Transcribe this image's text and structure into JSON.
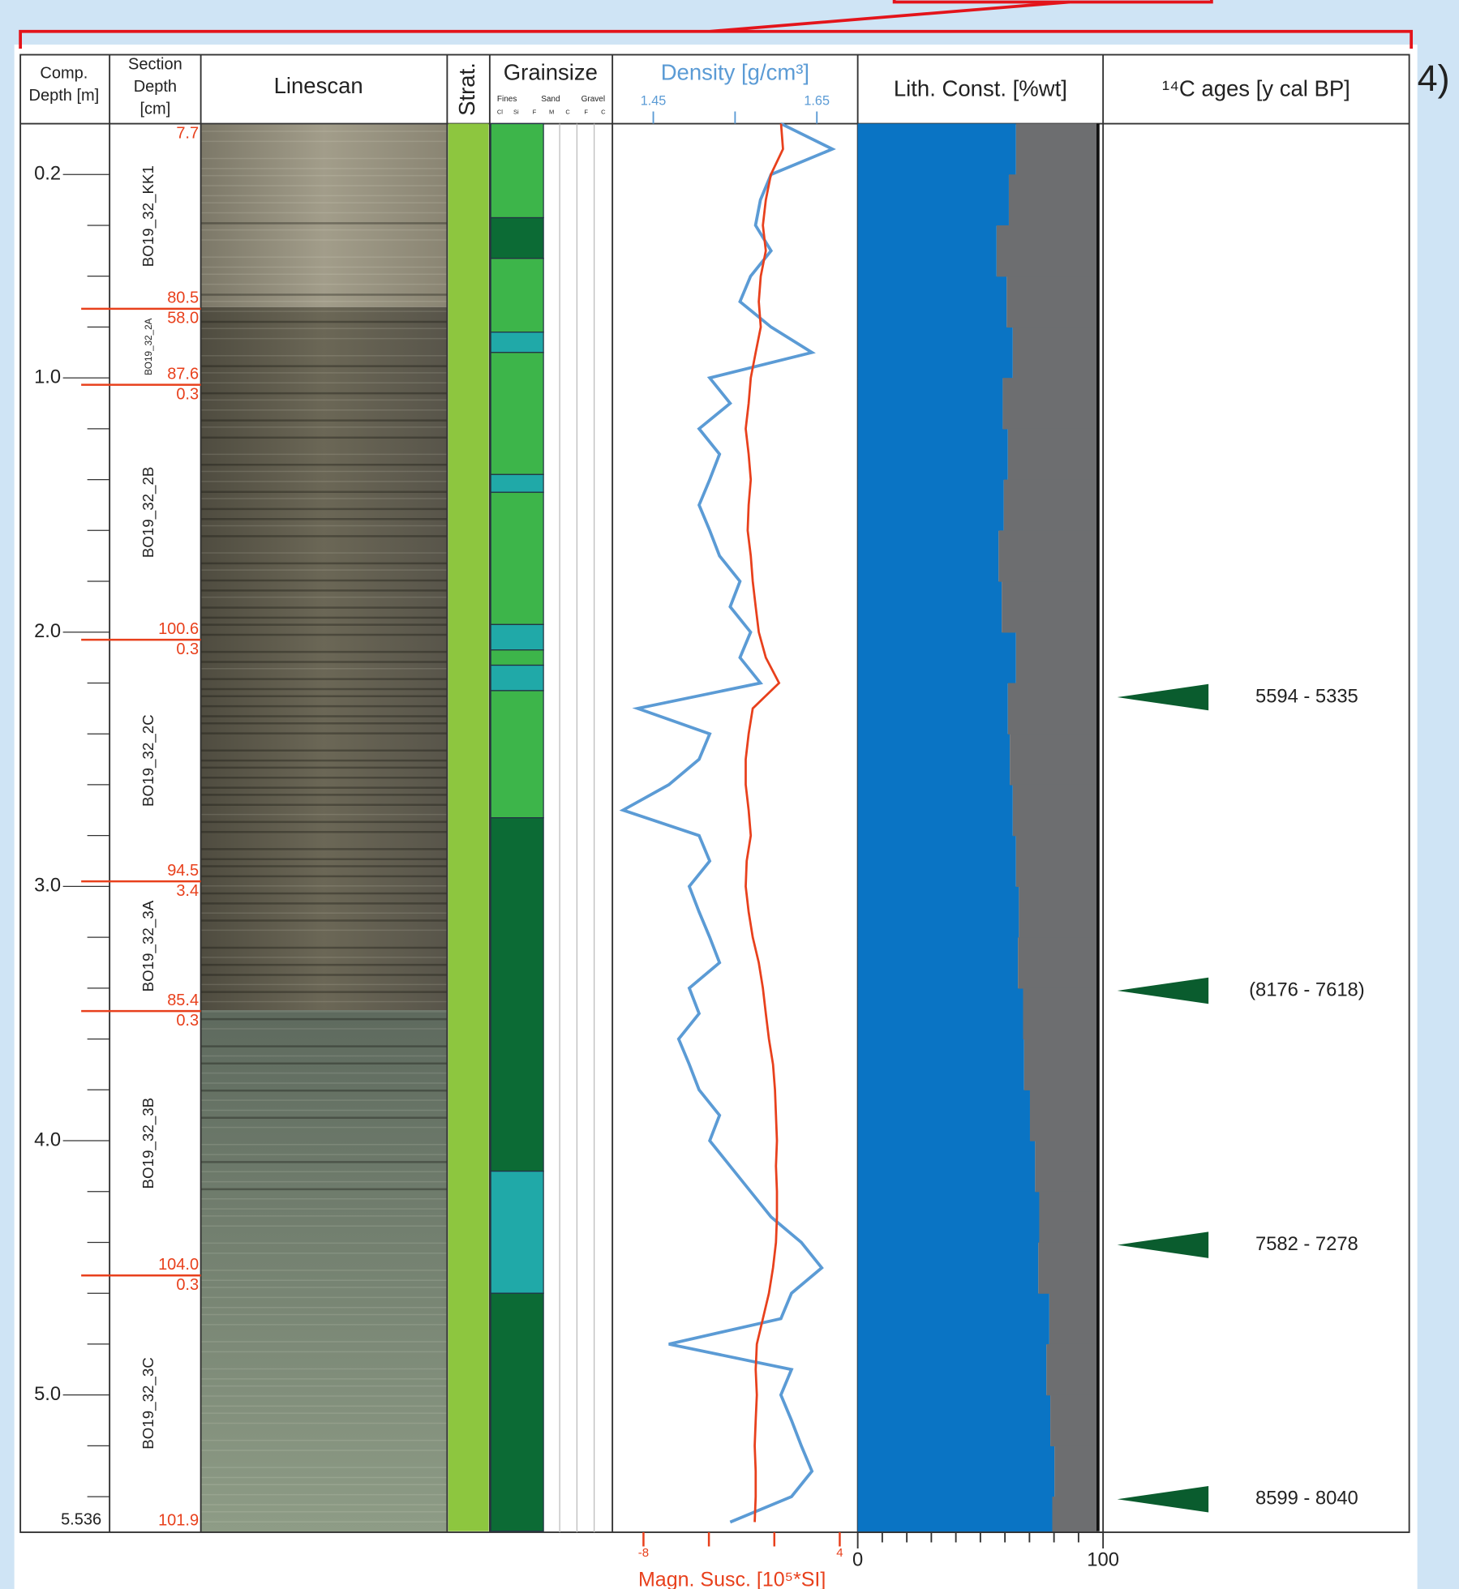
{
  "chart_data": {
    "type": "core_log",
    "panel_label": "4)",
    "headers": {
      "comp_depth": [
        "Comp.",
        "Depth [m]"
      ],
      "section_depth": [
        "Section",
        "Depth",
        "[cm]"
      ],
      "linescan": "Linescan",
      "strat": "Strat.",
      "grainsize": "Grainsize",
      "grainsize_groups": [
        "Fines",
        "Sand",
        "Gravel"
      ],
      "grainsize_classes": [
        "Cl",
        "Si",
        "F",
        "M",
        "C",
        "F",
        "C"
      ],
      "density": "Density [g/cm³]",
      "lith": "Lith. Const. [%wt]",
      "ages": "¹⁴C ages [y cal BP]"
    },
    "ylim": [
      0,
      5.536
    ],
    "yticks": [
      0.2,
      {
        "value": 1,
        "label": "1.0"
      },
      {
        "value": 2,
        "label": "2.0"
      },
      {
        "value": 3,
        "label": "3.0"
      },
      {
        "value": 4,
        "label": "4.0"
      },
      {
        "value": 5,
        "label": "5.0"
      },
      5.536
    ],
    "yminor": [
      0.4,
      0.6,
      0.8,
      1.2,
      1.4,
      1.6,
      1.8,
      2.2,
      2.4,
      2.6,
      2.8,
      3.2,
      3.4,
      3.6,
      3.8,
      4.2,
      4.4,
      4.6,
      4.8,
      5.2,
      5.4
    ],
    "sections": [
      {
        "name": "BO19_32_KK1",
        "top_label": "7.7",
        "bottom_label": "80.5",
        "top": 0,
        "bottom": 0.728
      },
      {
        "name": "BO19_32_2A",
        "top_label": "58.0",
        "bottom_label": "87.6",
        "top": 0.728,
        "bottom": 1.027
      },
      {
        "name": "BO19_32_2B",
        "top_label": "0.3",
        "bottom_label": "100.6",
        "top": 1.027,
        "bottom": 2.03
      },
      {
        "name": "BO19_32_2C",
        "top_label": "0.3",
        "bottom_label": "94.5",
        "top": 2.03,
        "bottom": 2.98
      },
      {
        "name": "BO19_32_3A",
        "top_label": "3.4",
        "bottom_label": "85.4",
        "top": 2.98,
        "bottom": 3.49
      },
      {
        "name": "BO19_32_3B",
        "top_label": "0.3",
        "bottom_label": "104.0",
        "top": 3.49,
        "bottom": 4.53
      },
      {
        "name": "BO19_32_3C",
        "top_label": "0.3",
        "bottom_label": "101.9",
        "top": 4.53,
        "bottom": 5.536
      }
    ],
    "section_color": "#e8401c",
    "strat_color": "#8dc63f",
    "grainsize_units": [
      {
        "top": 0,
        "bottom": 0.37,
        "color": "#3db54a"
      },
      {
        "top": 0.37,
        "bottom": 0.53,
        "color": "#0c6b35"
      },
      {
        "top": 0.53,
        "bottom": 0.82,
        "color": "#3db54a"
      },
      {
        "top": 0.82,
        "bottom": 0.9,
        "color": "#20a9a8"
      },
      {
        "top": 0.9,
        "bottom": 1.38,
        "color": "#3db54a"
      },
      {
        "top": 1.38,
        "bottom": 1.45,
        "color": "#20a9a8"
      },
      {
        "top": 1.45,
        "bottom": 1.97,
        "color": "#3db54a"
      },
      {
        "top": 1.97,
        "bottom": 2.07,
        "color": "#20a9a8"
      },
      {
        "top": 2.07,
        "bottom": 2.13,
        "color": "#3db54a"
      },
      {
        "top": 2.13,
        "bottom": 2.23,
        "color": "#20a9a8"
      },
      {
        "top": 2.23,
        "bottom": 2.73,
        "color": "#3db54a"
      },
      {
        "top": 2.73,
        "bottom": 4.12,
        "color": "#0c6b35"
      },
      {
        "top": 4.12,
        "bottom": 4.6,
        "color": "#20a9a8"
      },
      {
        "top": 4.6,
        "bottom": 5.536,
        "color": "#0c6b35"
      }
    ],
    "depth": [
      0,
      0.1,
      0.2,
      0.3,
      0.4,
      0.5,
      0.6,
      0.7,
      0.8,
      0.9,
      1,
      1.1,
      1.2,
      1.3,
      1.4,
      1.5,
      1.6,
      1.7,
      1.8,
      1.9,
      2,
      2.1,
      2.2,
      2.3,
      2.4,
      2.5,
      2.6,
      2.7,
      2.8,
      2.9,
      3,
      3.1,
      3.2,
      3.3,
      3.4,
      3.5,
      3.6,
      3.7,
      3.8,
      3.9,
      4,
      4.1,
      4.2,
      4.3,
      4.4,
      4.5,
      4.6,
      4.7,
      4.8,
      4.9,
      5,
      5.1,
      5.2,
      5.3,
      5.4,
      5.5
    ],
    "density": {
      "color": "#5b9bd5",
      "xlim": [
        1.4,
        1.7
      ],
      "xticks": [
        1.45,
        1.65
      ],
      "xminor": [
        1.55
      ],
      "values": [
        1.606,
        1.669,
        1.594,
        1.581,
        1.575,
        1.594,
        1.569,
        1.556,
        1.594,
        1.644,
        1.519,
        1.544,
        1.506,
        1.531,
        1.519,
        1.506,
        1.519,
        1.531,
        1.556,
        1.544,
        1.569,
        1.556,
        1.581,
        1.431,
        1.519,
        1.506,
        1.469,
        1.413,
        1.506,
        1.519,
        1.494,
        1.506,
        1.519,
        1.531,
        1.494,
        1.506,
        1.481,
        1.494,
        1.506,
        1.531,
        1.519,
        1.544,
        1.569,
        1.594,
        1.631,
        1.656,
        1.619,
        1.606,
        1.469,
        1.619,
        1.606,
        1.619,
        1.631,
        1.644,
        1.619,
        1.544
      ]
    },
    "magsus": {
      "label": "Magn. Susc. [10⁵*SI]",
      "color": "#e8401c",
      "xlim": [
        -9.9,
        5.1
      ],
      "xticks": [
        -8,
        4
      ],
      "xminor": [
        -4,
        0
      ],
      "values": [
        0.41,
        0.53,
        -0.21,
        -0.52,
        -0.7,
        -0.52,
        -0.83,
        -0.95,
        -0.83,
        -1.14,
        -1.44,
        -1.57,
        -1.75,
        -1.57,
        -1.44,
        -1.57,
        -1.63,
        -1.44,
        -1.32,
        -1.14,
        -0.95,
        -0.52,
        0.29,
        -1.32,
        -1.57,
        -1.75,
        -1.75,
        -1.57,
        -1.44,
        -1.69,
        -1.75,
        -1.57,
        -1.32,
        -0.95,
        -0.7,
        -0.52,
        -0.33,
        -0.08,
        0.04,
        0.1,
        0.16,
        0.1,
        0.16,
        0.16,
        0.1,
        -0.08,
        -0.33,
        -0.7,
        -1.07,
        -1.14,
        -1.07,
        -1.14,
        -1.2,
        -1.14,
        -1.14,
        -1.2
      ]
    },
    "lith": {
      "xlim": [
        0,
        100
      ],
      "xticks": [
        0,
        100
      ],
      "xminor": [
        10,
        20,
        30,
        40,
        50,
        60,
        70,
        80,
        90
      ],
      "edges": [
        0,
        0.2,
        0.4,
        0.6,
        0.8,
        1,
        1.2,
        1.4,
        1.6,
        1.8,
        2,
        2.2,
        2.4,
        2.6,
        2.8,
        3,
        3.2,
        3.4,
        3.6,
        3.8,
        4,
        4.2,
        4.4,
        4.6,
        4.8,
        5,
        5.2,
        5.4,
        5.536
      ],
      "series": [
        {
          "color": "#0a74c4",
          "values": [
            64.5,
            61.6,
            56.6,
            60.7,
            63.2,
            59.1,
            61.2,
            59.5,
            57.4,
            58.7,
            64.5,
            61.2,
            62.0,
            63.2,
            64.5,
            65.7,
            65.3,
            67.4,
            67.8,
            70.2,
            72.3,
            74.0,
            73.6,
            78.1,
            76.9,
            78.5,
            80.2,
            79.3
          ]
        },
        {
          "color": "#6d6e70",
          "values": [
            33.0,
            35.9,
            40.9,
            36.8,
            34.3,
            38.4,
            36.3,
            38.0,
            40.1,
            38.8,
            33.0,
            36.3,
            35.5,
            34.3,
            33.0,
            31.8,
            32.2,
            30.1,
            29.7,
            27.3,
            25.2,
            23.5,
            23.9,
            19.4,
            20.6,
            19.0,
            17.3,
            18.2
          ]
        }
      ]
    },
    "ages": {
      "color": "#0a5c2e",
      "items": [
        {
          "depth": 2.256,
          "label": "5594 - 5335"
        },
        {
          "depth": 3.41,
          "label": "(8176 - 7618)"
        },
        {
          "depth": 4.41,
          "label": "7582 - 7278"
        },
        {
          "depth": 5.41,
          "label": "8599 - 8040"
        }
      ]
    }
  }
}
